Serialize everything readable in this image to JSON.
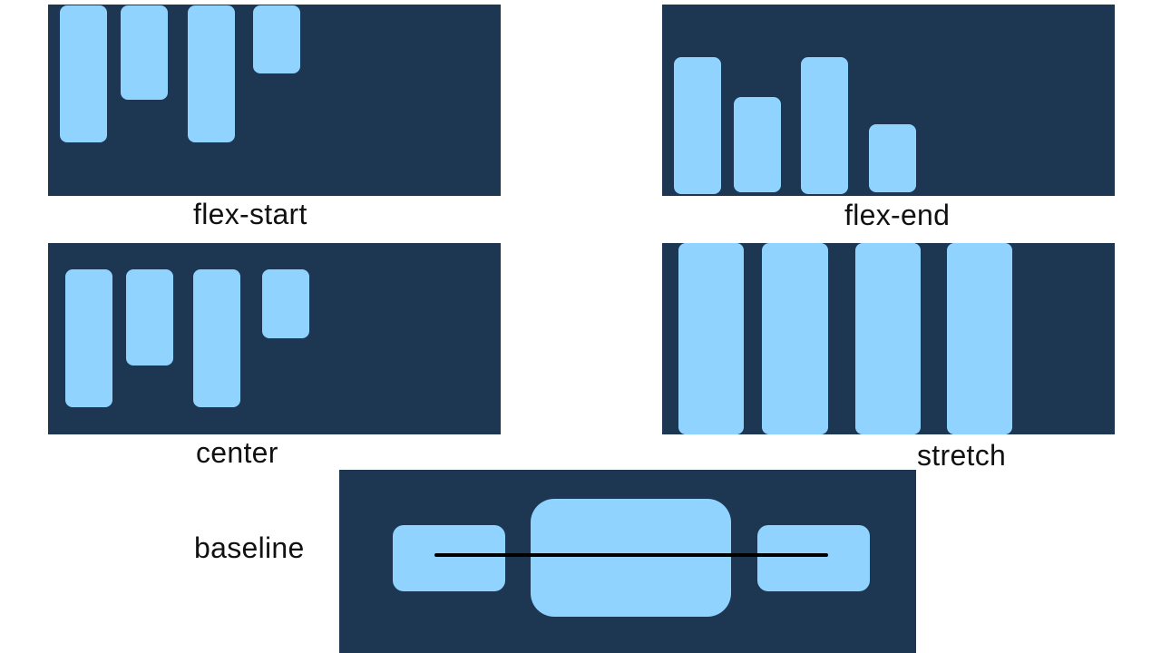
{
  "diagrams": {
    "flex_start": {
      "label": "flex-start"
    },
    "flex_end": {
      "label": "flex-end"
    },
    "center": {
      "label": "center"
    },
    "stretch": {
      "label": "stretch"
    },
    "baseline": {
      "label": "baseline"
    }
  },
  "colors": {
    "panel": "#1d3753",
    "box": "#8fd3fe",
    "baseline_line": "#000000",
    "background": "#ffffff"
  }
}
